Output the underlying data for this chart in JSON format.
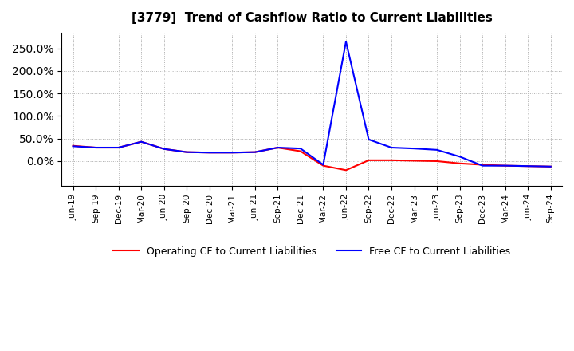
{
  "title": "[3779]  Trend of Cashflow Ratio to Current Liabilities",
  "x_labels": [
    "Jun-19",
    "Sep-19",
    "Dec-19",
    "Mar-20",
    "Jun-20",
    "Sep-20",
    "Dec-20",
    "Mar-21",
    "Jun-21",
    "Sep-21",
    "Dec-21",
    "Mar-22",
    "Jun-22",
    "Sep-22",
    "Dec-22",
    "Mar-23",
    "Jun-23",
    "Sep-23",
    "Dec-23",
    "Mar-24",
    "Jun-24",
    "Sep-24"
  ],
  "operating_cf": [
    0.34,
    0.3,
    0.3,
    0.43,
    0.27,
    0.2,
    0.19,
    0.19,
    0.2,
    0.3,
    0.22,
    -0.1,
    -0.2,
    0.02,
    0.02,
    0.01,
    0.0,
    -0.05,
    -0.08,
    -0.1,
    -0.11,
    -0.12
  ],
  "free_cf": [
    0.33,
    0.3,
    0.3,
    0.43,
    0.27,
    0.2,
    0.19,
    0.19,
    0.2,
    0.3,
    0.28,
    -0.08,
    2.65,
    0.48,
    0.3,
    0.28,
    0.25,
    0.1,
    -0.1,
    -0.1,
    -0.11,
    -0.12
  ],
  "operating_color": "#ff0000",
  "free_color": "#0000ff",
  "background_color": "#ffffff",
  "grid_color": "#b0b0b0",
  "legend_operating": "Operating CF to Current Liabilities",
  "legend_free": "Free CF to Current Liabilities",
  "yticks": [
    0.0,
    0.5,
    1.0,
    1.5,
    2.0,
    2.5
  ],
  "ylim_min": -0.55,
  "ylim_max": 2.85
}
